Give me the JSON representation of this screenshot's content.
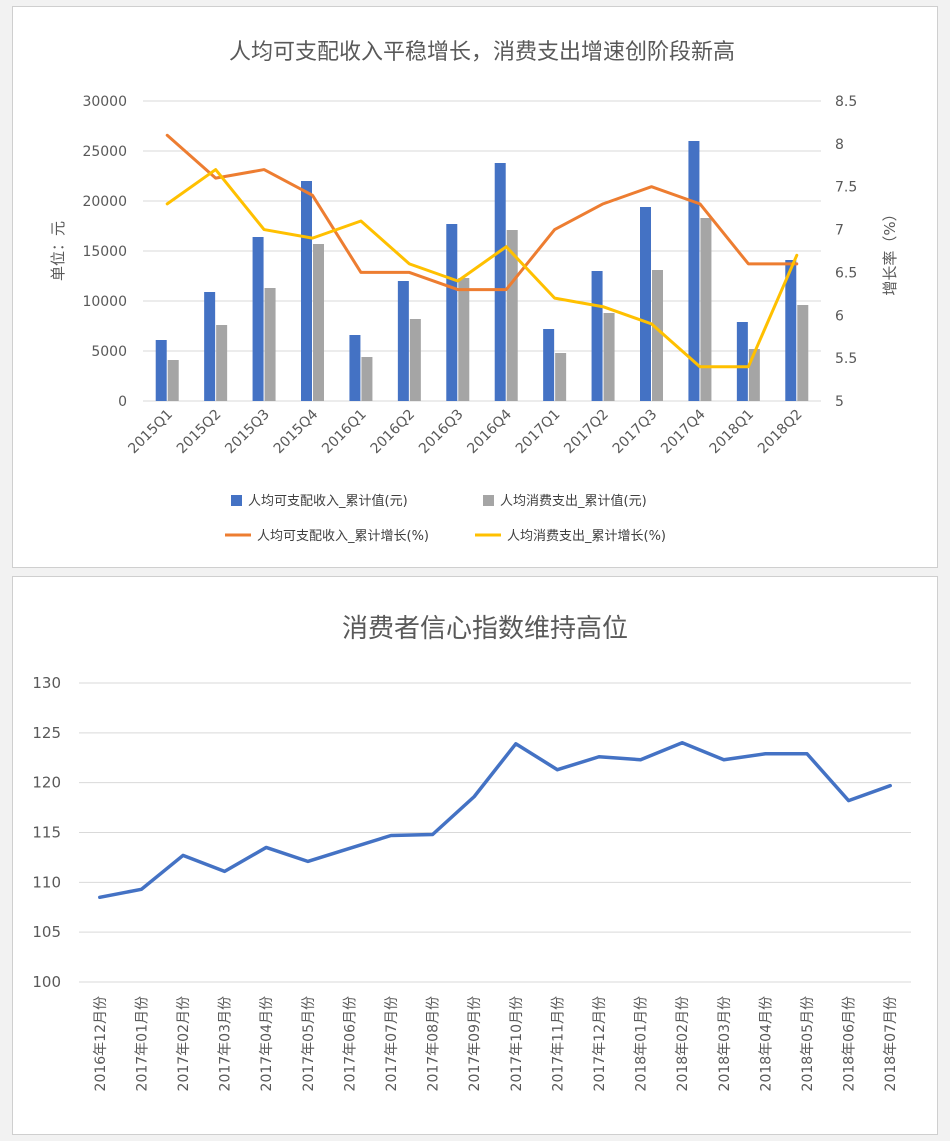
{
  "chart_data": [
    {
      "type": "bar",
      "title": "人均可支配收入平稳增长，消费支出增速创阶段新高",
      "ylabel": "单位：元",
      "y2label": "增长率（%）",
      "ylim": [
        0,
        30000
      ],
      "y_ticks": [
        "0",
        "5000",
        "10000",
        "15000",
        "20000",
        "25000",
        "30000"
      ],
      "y2lim": [
        5,
        8.5
      ],
      "y2_ticks": [
        "5",
        "5.5",
        "6",
        "6.5",
        "7",
        "7.5",
        "8",
        "8.5"
      ],
      "grid": true,
      "legend_position": "bottom",
      "categories": [
        "2015Q1",
        "2015Q2",
        "2015Q3",
        "2015Q4",
        "2016Q1",
        "2016Q2",
        "2016Q3",
        "2016Q4",
        "2017Q1",
        "2017Q2",
        "2017Q3",
        "2017Q4",
        "2018Q1",
        "2018Q2"
      ],
      "series": [
        {
          "name": "人均可支配收入_累计值(元)",
          "kind": "bar",
          "axis": "left",
          "color": "#4472c4",
          "values": [
            6100,
            10900,
            16400,
            22000,
            6600,
            12000,
            17700,
            23800,
            7200,
            13000,
            19400,
            26000,
            7900,
            14100
          ]
        },
        {
          "name": "人均消费支出_累计值(元)",
          "kind": "bar",
          "axis": "left",
          "color": "#a5a5a5",
          "values": [
            4100,
            7600,
            11300,
            15700,
            4400,
            8200,
            12300,
            17100,
            4800,
            8800,
            13100,
            18300,
            5200,
            9600
          ]
        },
        {
          "name": "人均可支配收入_累计增长(%)",
          "kind": "line",
          "axis": "right",
          "color": "#ed7d31",
          "values": [
            8.1,
            7.6,
            7.7,
            7.4,
            6.5,
            6.5,
            6.3,
            6.3,
            7.0,
            7.3,
            7.5,
            7.3,
            6.6,
            6.6
          ]
        },
        {
          "name": "人均消费支出_累计增长(%)",
          "kind": "line",
          "axis": "right",
          "color": "#ffc000",
          "values": [
            7.3,
            7.7,
            7.0,
            6.9,
            7.1,
            6.6,
            6.4,
            6.8,
            6.2,
            6.1,
            5.9,
            5.4,
            5.4,
            6.7
          ]
        }
      ]
    },
    {
      "type": "line",
      "title": "消费者信心指数维持高位",
      "ylim": [
        100,
        130
      ],
      "y_ticks": [
        "100",
        "105",
        "110",
        "115",
        "120",
        "125",
        "130"
      ],
      "grid": true,
      "categories": [
        "2016年12月份",
        "2017年01月份",
        "2017年02月份",
        "2017年03月份",
        "2017年04月份",
        "2017年05月份",
        "2017年06月份",
        "2017年07月份",
        "2017年08月份",
        "2017年09月份",
        "2017年10月份",
        "2017年11月份",
        "2017年12月份",
        "2018年01月份",
        "2018年02月份",
        "2018年03月份",
        "2018年04月份",
        "2018年05月份",
        "2018年06月份",
        "2018年07月份"
      ],
      "series": [
        {
          "kind": "line",
          "color": "#4472c4",
          "values": [
            108.5,
            109.3,
            112.7,
            111.1,
            113.5,
            112.1,
            113.4,
            114.7,
            114.8,
            118.6,
            123.9,
            121.3,
            122.6,
            122.3,
            124.0,
            122.3,
            122.9,
            122.9,
            118.2,
            119.7
          ]
        }
      ]
    }
  ]
}
